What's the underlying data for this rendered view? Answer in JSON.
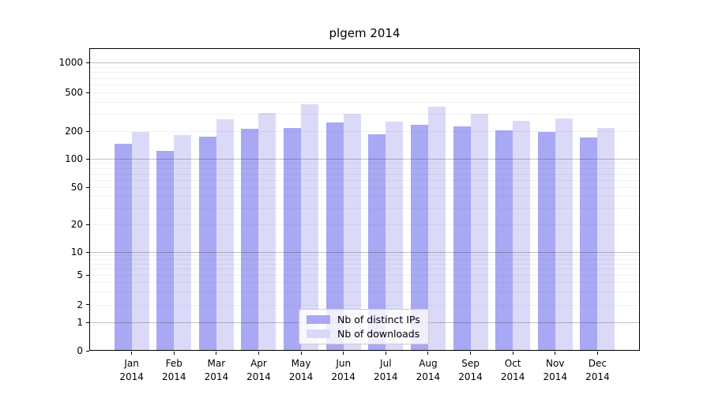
{
  "chart_data": {
    "type": "bar",
    "title": "plgem 2014",
    "categories": [
      "Jan 2014",
      "Feb 2014",
      "Mar 2014",
      "Apr 2014",
      "May 2014",
      "Jun 2014",
      "Jul 2014",
      "Aug 2014",
      "Sep 2014",
      "Oct 2014",
      "Nov 2014",
      "Dec 2014"
    ],
    "series": [
      {
        "name": "Nb of distinct IPs",
        "color": "#a8a8f4",
        "values": [
          145,
          123,
          174,
          210,
          215,
          245,
          183,
          233,
          225,
          203,
          195,
          170
        ]
      },
      {
        "name": "Nb of downloads",
        "color": "#dadaf8",
        "values": [
          195,
          180,
          265,
          305,
          375,
          300,
          252,
          355,
          300,
          257,
          272,
          215
        ]
      }
    ],
    "xlabel": "",
    "ylabel": "",
    "y_axis": {
      "scale": "log-like (1-2-5 tick sequence, 0 baseline)",
      "ticks": [
        0,
        1,
        2,
        5,
        10,
        20,
        50,
        100,
        200,
        500,
        1000
      ],
      "ylim": [
        0,
        1000
      ]
    },
    "grid": {
      "horizontal": true,
      "major_on": [
        1,
        10,
        100,
        1000
      ],
      "minor": "faint 2-9 per decade",
      "drawn_over_bars": true
    },
    "legend": {
      "position": "inside bottom-center",
      "entries": [
        "Nb of distinct IPs",
        "Nb of downloads"
      ]
    },
    "text_color": "#000000",
    "background": "#ffffff"
  }
}
